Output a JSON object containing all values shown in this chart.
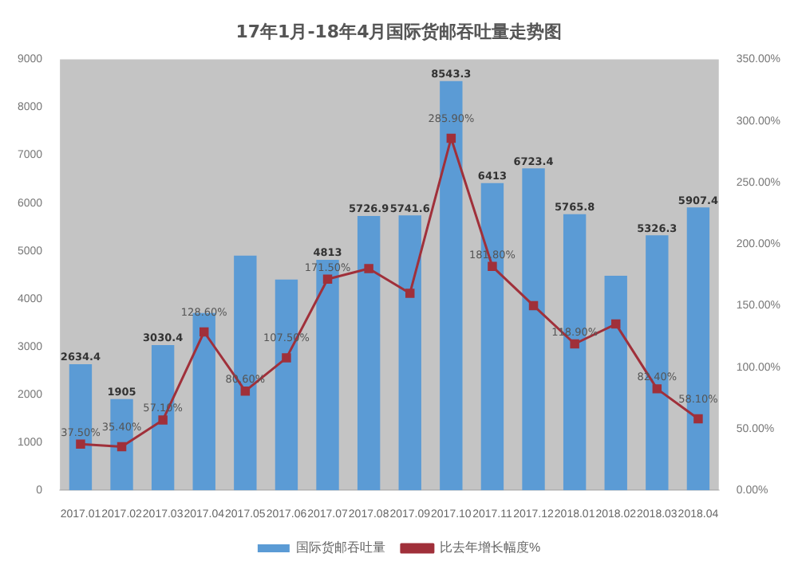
{
  "chart_data": {
    "type": "bar",
    "title": "17年1月-18年4月国际货邮吞吐量走势图",
    "categories": [
      "2017.01",
      "2017.02",
      "2017.03",
      "2017.04",
      "2017.05",
      "2017.06",
      "2017.07",
      "2017.08",
      "2017.09",
      "2017.10",
      "2017.11",
      "2017.12",
      "2018.01",
      "2018.02",
      "2018.03",
      "2018.04"
    ],
    "series": [
      {
        "name": "国际货邮吞吐量",
        "color": "#5b9bd5",
        "values": [
          2634.4,
          1905,
          3030.4,
          3700,
          4900,
          4400,
          4813,
          5726.9,
          5741.6,
          8543.3,
          6413,
          6723.4,
          5765.8,
          4480,
          5326.3,
          5907.4
        ],
        "value_labels": [
          "2634.4",
          "1905",
          "3030.4",
          null,
          null,
          null,
          "4813",
          "5726.9",
          "5741.6",
          "8543.3",
          "6413",
          "6723.4",
          "5765.8",
          null,
          "5326.3",
          "5907.4"
        ]
      },
      {
        "name": "比去年增长幅度%",
        "type": "line",
        "axis": "y2",
        "color": "#a0303a",
        "marker": "square",
        "values": [
          37.5,
          35.4,
          57.1,
          128.6,
          80.6,
          107.5,
          171.5,
          180,
          160,
          285.9,
          181.8,
          150,
          118.9,
          135,
          82.4,
          58.1
        ],
        "value_labels": [
          "37.50%",
          "35.40%",
          "57.10%",
          "128.60%",
          "80.60%",
          "107.50%",
          "171.50%",
          null,
          null,
          "285.90%",
          "181.80%",
          null,
          "118.90%",
          null,
          "82.40%",
          "58.10%"
        ]
      }
    ],
    "ylim": [
      0,
      9000
    ],
    "yticks": [
      0,
      1000,
      2000,
      3000,
      4000,
      5000,
      6000,
      7000,
      8000,
      9000
    ],
    "y2lim": [
      0,
      350
    ],
    "y2ticks": [
      {
        "value": 0,
        "label": "0.00%"
      },
      {
        "value": 50,
        "label": "50.00%"
      },
      {
        "value": 100,
        "label": "100.00%"
      },
      {
        "value": 150,
        "label": "150.00%"
      },
      {
        "value": 200,
        "label": "200.00%"
      },
      {
        "value": 250,
        "label": "250.00%"
      },
      {
        "value": 300,
        "label": "300.00%"
      },
      {
        "value": 350,
        "label": "350.00%"
      }
    ],
    "legend": "bottom",
    "grid": false
  }
}
